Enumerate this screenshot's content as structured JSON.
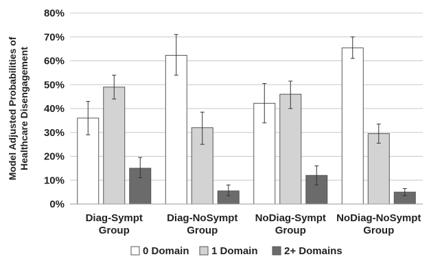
{
  "chart_data": {
    "type": "bar",
    "ylabel_lines": [
      "Model Adjusted Probabilities of",
      "Healthcare Disengagement"
    ],
    "categories": [
      [
        "Diag-Sympt",
        "Group"
      ],
      [
        "Diag-NoSympt",
        "Group"
      ],
      [
        "NoDiag-Sympt",
        "Group"
      ],
      [
        "NoDiag-NoSympt",
        "Group"
      ]
    ],
    "ylim": [
      0,
      80
    ],
    "yticks": [
      0,
      10,
      20,
      30,
      40,
      50,
      60,
      70,
      80
    ],
    "ytick_labels": [
      "0%",
      "10%",
      "20%",
      "30%",
      "40%",
      "50%",
      "60%",
      "70%",
      "80%"
    ],
    "grid": true,
    "legend_position": "bottom",
    "series": [
      {
        "name": "0 Domain",
        "color": "#ffffff",
        "values": [
          36,
          62.3,
          42.2,
          65.4
        ],
        "err_low": [
          29,
          54,
          34,
          61
        ],
        "err_high": [
          43,
          71,
          50.5,
          70
        ]
      },
      {
        "name": "1 Domain",
        "color": "#d3d3d3",
        "values": [
          49,
          32,
          46,
          29.5
        ],
        "err_low": [
          44,
          25,
          40,
          25.5
        ],
        "err_high": [
          54,
          38.5,
          51.5,
          33.5
        ]
      },
      {
        "name": "2+ Domains",
        "color": "#6b6b6b",
        "values": [
          15,
          5.5,
          12,
          5
        ],
        "err_low": [
          11,
          3.5,
          8,
          3.5
        ],
        "err_high": [
          19.5,
          8,
          16,
          6.5
        ]
      }
    ]
  }
}
